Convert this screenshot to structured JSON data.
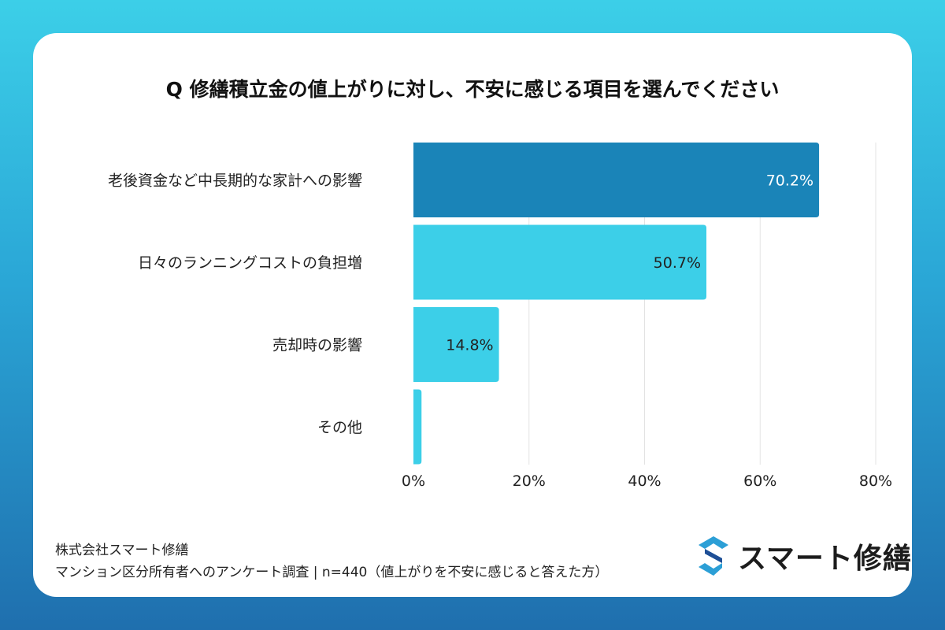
{
  "chart_data": {
    "type": "bar",
    "orientation": "horizontal",
    "title": "Q 修繕積立金の値上がりに対し、不安に感じる項目を選んでください",
    "categories": [
      "老後資金など中長期的な家計への影響",
      "日々のランニングコストの負担増",
      "売却時の影響",
      "その他"
    ],
    "values": [
      70.2,
      50.7,
      14.8,
      1.4
    ],
    "data_labels": [
      "70.2%",
      "50.7%",
      "14.8%",
      ""
    ],
    "xlim": [
      0,
      80
    ],
    "ticks": [
      "0%",
      "20%",
      "40%",
      "60%",
      "80%"
    ],
    "tick_values": [
      0,
      20,
      40,
      60,
      80
    ],
    "grid": true,
    "colors": {
      "highlight": "#1a84b8",
      "default": "#3ccfe8"
    }
  },
  "footer": {
    "company": "株式会社スマート修繕",
    "survey": "マンション区分所有者へのアンケート調査 | n=440（値上がりを不安に感じると答えた方）"
  },
  "logo": {
    "text": "スマート修繕"
  }
}
